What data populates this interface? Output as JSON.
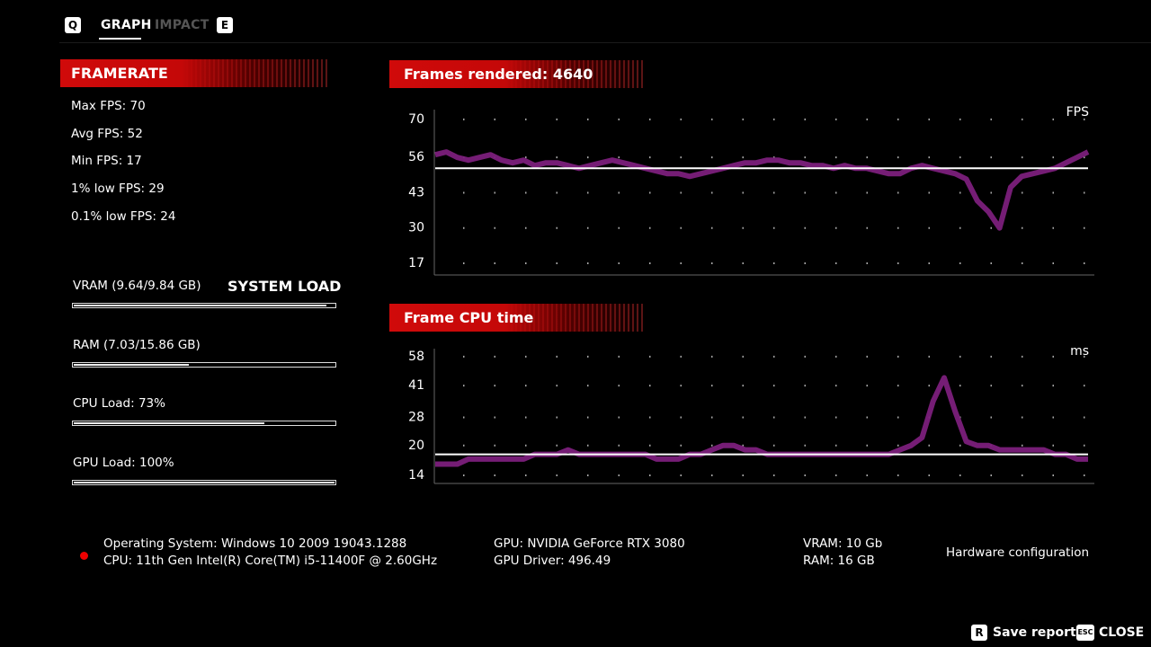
{
  "tabs": {
    "q": "Q",
    "graph": "GRAPH",
    "impact": "IMPACT",
    "e": "E"
  },
  "framerate": {
    "title": "FRAMERATE",
    "stats": [
      "Max FPS: 70",
      "Avg FPS: 52",
      "Min FPS: 17",
      "1% low FPS: 29",
      "0.1% low FPS: 24"
    ]
  },
  "system_load": {
    "title": "SYSTEM LOAD",
    "items": [
      {
        "label": "VRAM (9.64/9.84 GB)",
        "fill": 97
      },
      {
        "label": "RAM (7.03/15.86 GB)",
        "fill": 44
      },
      {
        "label": "CPU Load: 73%",
        "fill": 73
      },
      {
        "label": "GPU Load: 100%",
        "fill": 100
      }
    ]
  },
  "chart_data": [
    {
      "type": "line",
      "title": "Frames rendered: 4640",
      "unit": "FPS",
      "color": "#7b1f7b",
      "ylim": [
        12.7,
        73.6
      ],
      "yticks": [
        70,
        56,
        43,
        30,
        17
      ],
      "grid": true,
      "reference_line": 52,
      "values": [
        57,
        58,
        56,
        55,
        56,
        57,
        55,
        54,
        55,
        53,
        54,
        54,
        53,
        52,
        53,
        54,
        55,
        54,
        53,
        52,
        51,
        50,
        50,
        49,
        50,
        51,
        52,
        53,
        54,
        54,
        55,
        55,
        54,
        54,
        53,
        53,
        52,
        53,
        52,
        52,
        51,
        50,
        50,
        52,
        53,
        52,
        51,
        50,
        48,
        40,
        36,
        30,
        45,
        49,
        50,
        51,
        52,
        54,
        56,
        58
      ]
    },
    {
      "type": "line",
      "title": "Frame CPU time",
      "unit": "ms",
      "color": "#7b1f7b",
      "log_scale": true,
      "ylim": [
        12.7,
        63.8
      ],
      "yticks": [
        58,
        41,
        28,
        20,
        14
      ],
      "grid": true,
      "reference_line": 18,
      "values": [
        16,
        16,
        16,
        17,
        17,
        17,
        17,
        17,
        17,
        18,
        18,
        18,
        19,
        18,
        18,
        18,
        18,
        18,
        18,
        18,
        17,
        17,
        17,
        18,
        18,
        19,
        20,
        20,
        19,
        19,
        18,
        18,
        18,
        18,
        18,
        18,
        18,
        18,
        18,
        18,
        18,
        18,
        19,
        20,
        22,
        34,
        45,
        30,
        21,
        20,
        20,
        19,
        19,
        19,
        19,
        19,
        18,
        18,
        17,
        17
      ]
    }
  ],
  "hardware": {
    "os": "Operating System: Windows 10 2009 19043.1288",
    "cpu": "CPU: 11th Gen Intel(R) Core(TM) i5-11400F @ 2.60GHz",
    "gpu": "GPU: NVIDIA GeForce RTX 3080",
    "driver": "GPU Driver: 496.49",
    "vram": "VRAM: 10 Gb",
    "ram": "RAM: 16 GB",
    "title": "Hardware configuration"
  },
  "footer": {
    "save_key": "R",
    "save": "Save report",
    "close_key": "ESC",
    "close": "CLOSE"
  }
}
